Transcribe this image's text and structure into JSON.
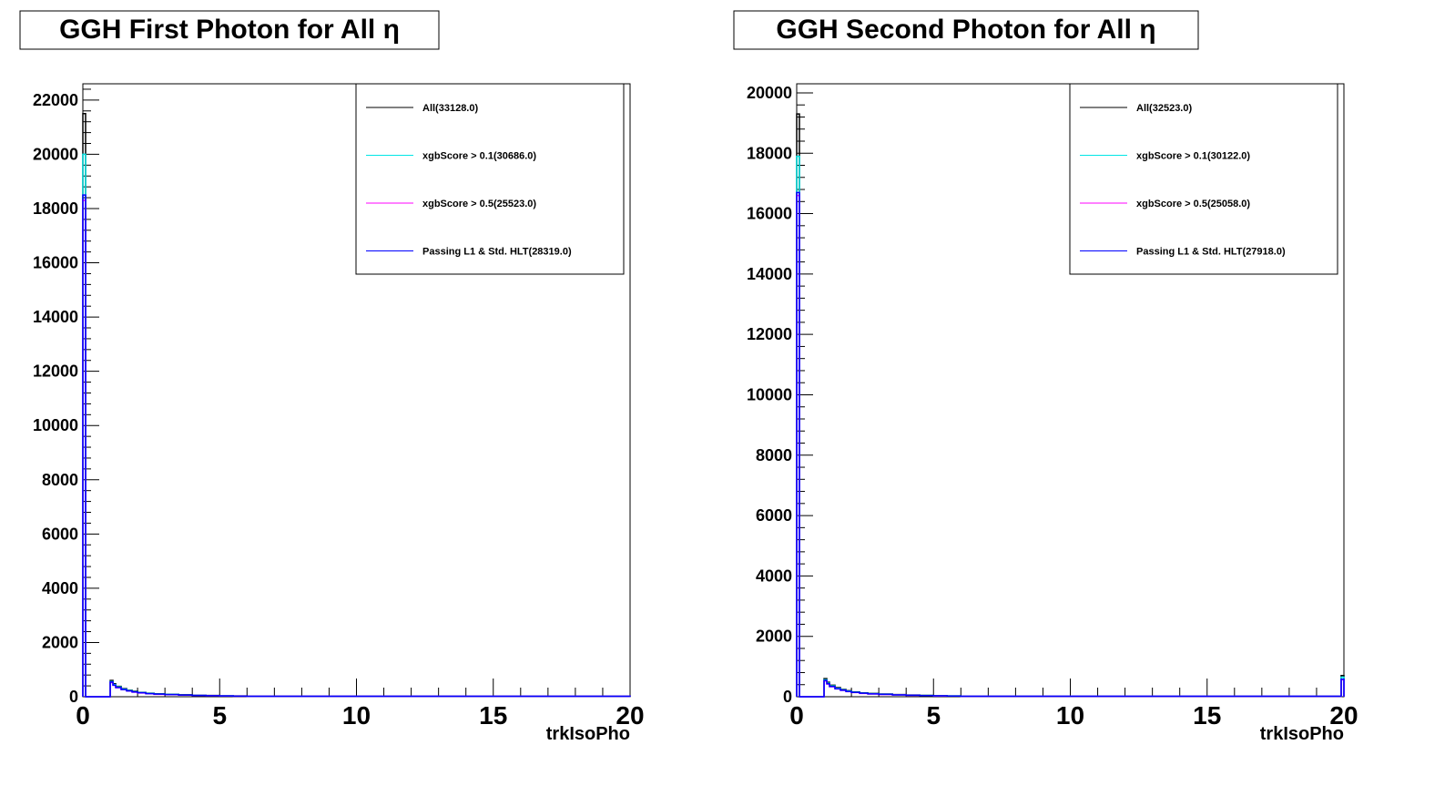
{
  "chart_data": [
    {
      "type": "line",
      "title": "GGH First Photon for All η",
      "xlabel": "trkIsoPho",
      "ylabel": "",
      "xlim": [
        0,
        20
      ],
      "ylim": [
        0,
        22600
      ],
      "x_ticks": [
        "0",
        "5",
        "10",
        "15",
        "20"
      ],
      "y_ticks": [
        "0",
        "2000",
        "4000",
        "6000",
        "8000",
        "10000",
        "12000",
        "14000",
        "16000",
        "18000",
        "20000",
        "22000"
      ],
      "legend_position": "top-right",
      "series": [
        {
          "name": "All(33128.0)",
          "color": "#000000",
          "x": [
            0,
            0.1,
            1.0,
            1.1,
            1.2,
            1.4,
            1.6,
            1.8,
            2.0,
            2.3,
            2.6,
            3.0,
            3.5,
            4.0,
            4.5,
            5.0,
            5.5,
            6.0,
            20
          ],
          "y": [
            21500,
            0,
            600,
            480,
            380,
            300,
            240,
            200,
            160,
            130,
            110,
            90,
            70,
            55,
            45,
            35,
            28,
            20,
            0
          ]
        },
        {
          "name": "xgbScore > 0.1(30686.0)",
          "color": "#00e5e5",
          "x": [
            0,
            0.1,
            1.0,
            1.1,
            1.2,
            1.4,
            1.6,
            1.8,
            2.0,
            2.3,
            2.6,
            3.0,
            3.5,
            4.0,
            4.5,
            5.0,
            5.5,
            6.0,
            20
          ],
          "y": [
            20000,
            0,
            560,
            450,
            360,
            280,
            225,
            185,
            150,
            120,
            100,
            85,
            65,
            50,
            40,
            32,
            25,
            18,
            0
          ]
        },
        {
          "name": "xgbScore > 0.5(25523.0)",
          "color": "#ff00ff",
          "x": [
            0,
            0.1,
            1.0,
            1.1,
            1.2,
            1.4,
            1.6,
            1.8,
            2.0,
            2.3,
            2.6,
            3.0,
            3.5,
            4.0,
            4.5,
            5.0,
            5.5,
            6.0,
            20
          ],
          "y": [
            18300,
            0,
            520,
            420,
            330,
            260,
            210,
            170,
            140,
            110,
            90,
            75,
            60,
            45,
            36,
            28,
            22,
            15,
            0
          ]
        },
        {
          "name": "Passing L1 & Std. HLT(28319.0)",
          "color": "#0000ff",
          "x": [
            0,
            0.1,
            1.0,
            1.1,
            1.2,
            1.4,
            1.6,
            1.8,
            2.0,
            2.3,
            2.6,
            3.0,
            3.5,
            4.0,
            4.5,
            5.0,
            5.5,
            6.0,
            20
          ],
          "y": [
            18500,
            0,
            540,
            430,
            340,
            265,
            215,
            175,
            145,
            115,
            95,
            80,
            62,
            48,
            38,
            30,
            23,
            16,
            0
          ]
        }
      ]
    },
    {
      "type": "line",
      "title": "GGH Second Photon for All η",
      "xlabel": "trkIsoPho",
      "ylabel": "",
      "xlim": [
        0,
        20
      ],
      "ylim": [
        0,
        20300
      ],
      "x_ticks": [
        "0",
        "5",
        "10",
        "15",
        "20"
      ],
      "y_ticks": [
        "0",
        "2000",
        "4000",
        "6000",
        "8000",
        "10000",
        "12000",
        "14000",
        "16000",
        "18000",
        "20000"
      ],
      "legend_position": "top-right",
      "series": [
        {
          "name": "All(32523.0)",
          "color": "#000000",
          "x": [
            0,
            0.1,
            1.0,
            1.1,
            1.2,
            1.4,
            1.6,
            1.8,
            2.0,
            2.3,
            2.6,
            3.0,
            3.5,
            4.0,
            4.5,
            5.0,
            5.5,
            6.0,
            19.9,
            20
          ],
          "y": [
            19300,
            0,
            600,
            480,
            380,
            300,
            240,
            200,
            160,
            130,
            110,
            90,
            70,
            55,
            45,
            35,
            28,
            20,
            700,
            0
          ]
        },
        {
          "name": "xgbScore > 0.1(30122.0)",
          "color": "#00e5e5",
          "x": [
            0,
            0.1,
            1.0,
            1.1,
            1.2,
            1.4,
            1.6,
            1.8,
            2.0,
            2.3,
            2.6,
            3.0,
            3.5,
            4.0,
            4.5,
            5.0,
            5.5,
            6.0,
            19.9,
            20
          ],
          "y": [
            17900,
            0,
            560,
            450,
            360,
            280,
            225,
            185,
            150,
            120,
            100,
            85,
            65,
            50,
            40,
            32,
            25,
            18,
            650,
            0
          ]
        },
        {
          "name": "xgbScore > 0.5(25058.0)",
          "color": "#ff00ff",
          "x": [
            0,
            0.1,
            1.0,
            1.1,
            1.2,
            1.4,
            1.6,
            1.8,
            2.0,
            2.3,
            2.6,
            3.0,
            3.5,
            4.0,
            4.5,
            5.0,
            5.5,
            6.0,
            19.9,
            20
          ],
          "y": [
            16600,
            0,
            520,
            420,
            330,
            260,
            210,
            170,
            140,
            110,
            90,
            75,
            60,
            45,
            36,
            28,
            22,
            15,
            560,
            0
          ]
        },
        {
          "name": "Passing L1 & Std. HLT(27918.0)",
          "color": "#0000ff",
          "x": [
            0,
            0.1,
            1.0,
            1.1,
            1.2,
            1.4,
            1.6,
            1.8,
            2.0,
            2.3,
            2.6,
            3.0,
            3.5,
            4.0,
            4.5,
            5.0,
            5.5,
            6.0,
            19.9,
            20
          ],
          "y": [
            16700,
            0,
            540,
            430,
            340,
            265,
            215,
            175,
            145,
            115,
            95,
            80,
            62,
            48,
            38,
            30,
            23,
            16,
            580,
            0
          ]
        }
      ]
    }
  ]
}
